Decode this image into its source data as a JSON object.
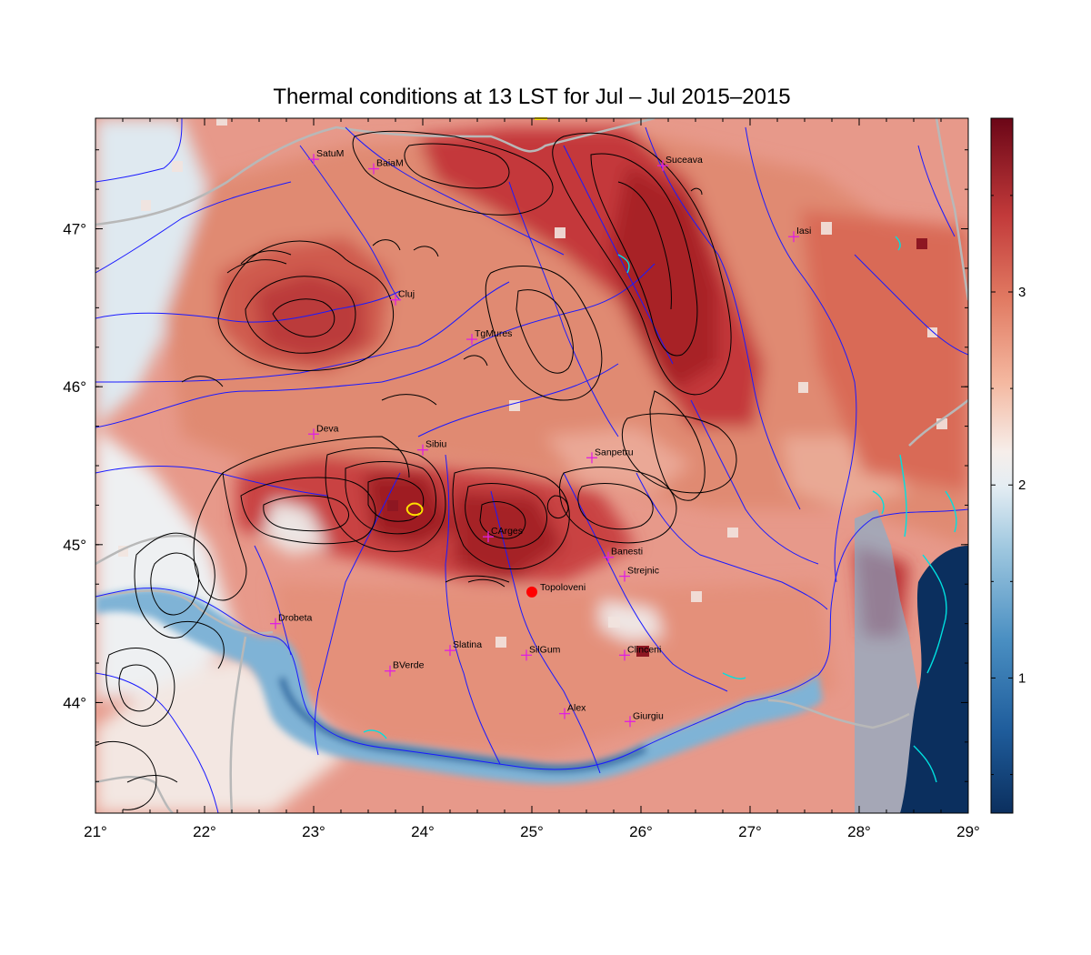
{
  "title": "Thermal conditions at 13 LST for Jul – Jul  2015–2015",
  "chart_data": {
    "type": "heatmap",
    "map_extent": {
      "lon": [
        21,
        29
      ],
      "lat": [
        43.3,
        47.7
      ]
    },
    "x_ticks": [
      "21°",
      "22°",
      "23°",
      "24°",
      "25°",
      "26°",
      "27°",
      "28°",
      "29°"
    ],
    "x_tick_values": [
      21,
      22,
      23,
      24,
      25,
      26,
      27,
      28,
      29
    ],
    "y_ticks": [
      "47°",
      "46°",
      "45°",
      "44°"
    ],
    "y_tick_values": [
      47,
      46,
      45,
      44
    ],
    "colorbar": {
      "range": [
        0.3,
        3.9
      ],
      "ticks": [
        "1",
        "2",
        "3"
      ],
      "tick_values": [
        1,
        2,
        3
      ],
      "colors": {
        "low": "#0b2f5e",
        "mid": "#f4f1ef",
        "high": "#6b0617"
      }
    },
    "cities": [
      {
        "name": "SatuM",
        "lon": 23.0,
        "lat": 47.44
      },
      {
        "name": "BaiaM",
        "lon": 23.55,
        "lat": 47.38
      },
      {
        "name": "Suceava",
        "lon": 26.2,
        "lat": 47.4
      },
      {
        "name": "Iasi",
        "lon": 27.4,
        "lat": 46.95
      },
      {
        "name": "Cluj",
        "lon": 23.75,
        "lat": 46.55
      },
      {
        "name": "TgMures",
        "lon": 24.45,
        "lat": 46.3
      },
      {
        "name": "Deva",
        "lon": 23.0,
        "lat": 45.7
      },
      {
        "name": "Sibiu",
        "lon": 24.0,
        "lat": 45.6
      },
      {
        "name": "Sanpetru",
        "lon": 25.55,
        "lat": 45.55
      },
      {
        "name": "CArges",
        "lon": 24.6,
        "lat": 45.05
      },
      {
        "name": "Banesti",
        "lon": 25.7,
        "lat": 44.92
      },
      {
        "name": "Strejnic",
        "lon": 25.85,
        "lat": 44.8
      },
      {
        "name": "Drobeta",
        "lon": 22.65,
        "lat": 44.5
      },
      {
        "name": "Slatina",
        "lon": 24.25,
        "lat": 44.33
      },
      {
        "name": "SilGum",
        "lon": 24.95,
        "lat": 44.3
      },
      {
        "name": "Clinceni",
        "lon": 25.85,
        "lat": 44.3
      },
      {
        "name": "BVerde",
        "lon": 23.7,
        "lat": 44.2
      },
      {
        "name": "Alex",
        "lon": 25.3,
        "lat": 43.93
      },
      {
        "name": "Giurgiu",
        "lon": 25.9,
        "lat": 43.88
      }
    ],
    "highlight": {
      "name": "Topoloveni",
      "lon": 25.0,
      "lat": 44.7,
      "color": "#ff0000"
    },
    "overlays": {
      "rivers_color": "#1a1aff",
      "contours_color": "#000000",
      "borders_color": "#b8b8b8",
      "city_marker_color": "#e020e0",
      "lakes_color": "#00e0e0"
    }
  }
}
